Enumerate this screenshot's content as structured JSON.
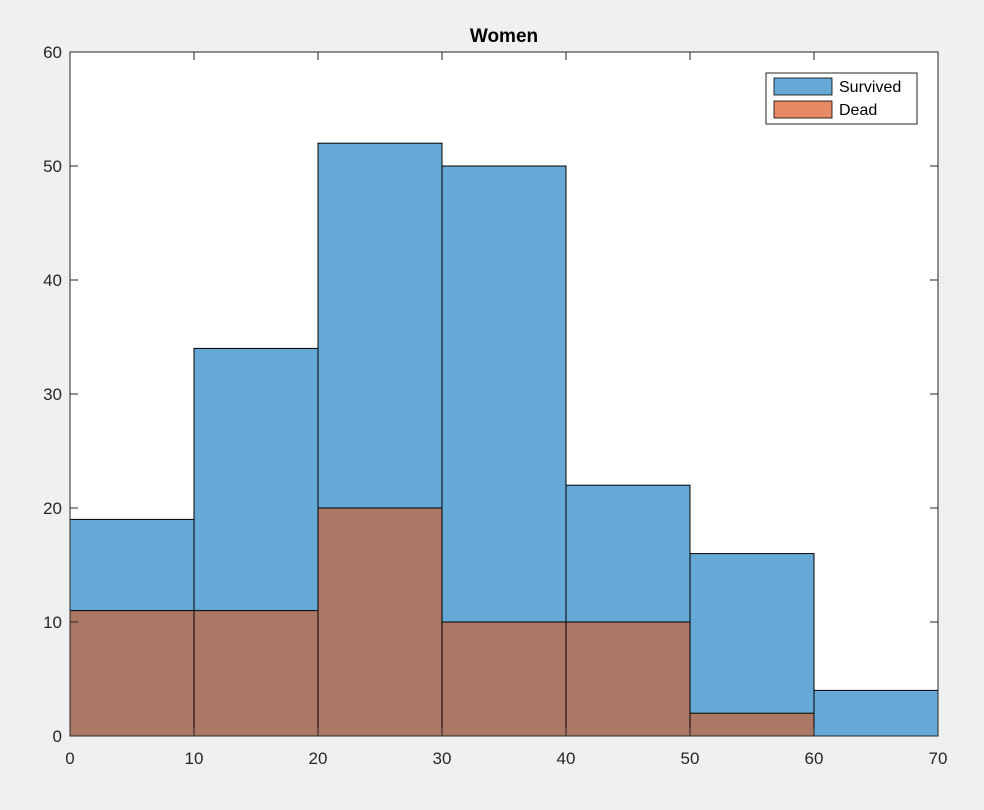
{
  "chart_data": {
    "type": "bar",
    "title": "Women",
    "xlabel": "",
    "ylabel": "",
    "bin_edges": [
      0,
      10,
      20,
      30,
      40,
      50,
      60,
      70
    ],
    "xlim": [
      0,
      70
    ],
    "ylim": [
      0,
      60
    ],
    "x_ticks": [
      0,
      10,
      20,
      30,
      40,
      50,
      60,
      70
    ],
    "y_ticks": [
      0,
      10,
      20,
      30,
      40,
      50,
      60
    ],
    "grid": false,
    "legend_position": "top-right",
    "series": [
      {
        "name": "Survived",
        "values": [
          19,
          34,
          52,
          50,
          22,
          16,
          4
        ],
        "color": "#66a9d6"
      },
      {
        "name": "Dead",
        "values": [
          11,
          11,
          20,
          10,
          10,
          2,
          0
        ],
        "color": "#e88a66"
      }
    ],
    "overlap_color": "#ab7866"
  }
}
